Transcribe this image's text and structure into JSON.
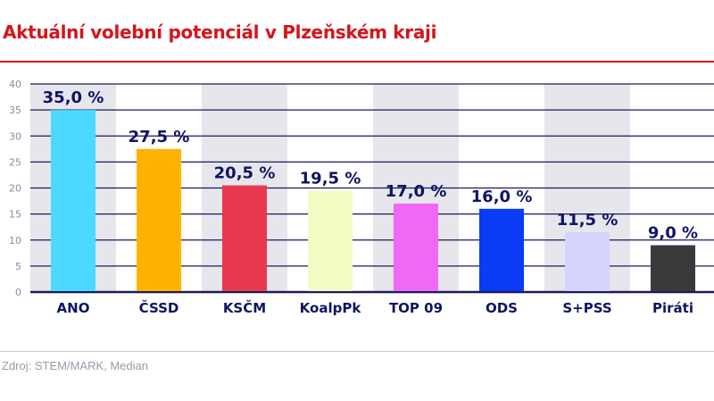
{
  "chart_data": {
    "type": "bar",
    "title": "Aktuální volební potenciál v Plzeňském kraji",
    "categories": [
      "ANO",
      "ČSSD",
      "KSČM",
      "KoalpPk",
      "TOP 09",
      "ODS",
      "S+PSS",
      "Piráti"
    ],
    "values": [
      35.0,
      27.5,
      20.5,
      19.5,
      17.0,
      16.0,
      11.5,
      9.0
    ],
    "data_labels": [
      "35,0 %",
      "27,5 %",
      "20,5 %",
      "19,5 %",
      "17,0 %",
      "16,0 %",
      "11,5 %",
      "9,0 %"
    ],
    "colors": [
      "#4dd9ff",
      "#ffb300",
      "#e8394f",
      "#f2fcc5",
      "#f068f5",
      "#0a3cf5",
      "#d4d4fc",
      "#3a3a3a"
    ],
    "ylim": [
      0,
      40
    ],
    "yticks": [
      "0",
      "5",
      "10",
      "15",
      "20",
      "25",
      "30",
      "35",
      "40"
    ],
    "grid": true,
    "xlabel": "",
    "ylabel": ""
  },
  "source": "Zdroj: STEM/MARK, Median"
}
